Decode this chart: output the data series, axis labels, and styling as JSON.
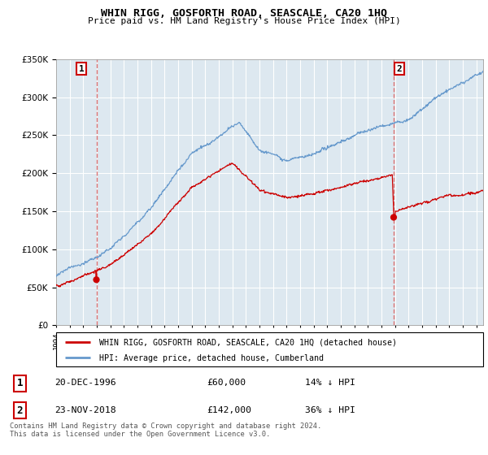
{
  "title": "WHIN RIGG, GOSFORTH ROAD, SEASCALE, CA20 1HQ",
  "subtitle": "Price paid vs. HM Land Registry's House Price Index (HPI)",
  "legend_line1": "WHIN RIGG, GOSFORTH ROAD, SEASCALE, CA20 1HQ (detached house)",
  "legend_line2": "HPI: Average price, detached house, Cumberland",
  "annotation1_date": "20-DEC-1996",
  "annotation1_price": "£60,000",
  "annotation1_hpi": "14% ↓ HPI",
  "annotation2_date": "23-NOV-2018",
  "annotation2_price": "£142,000",
  "annotation2_hpi": "36% ↓ HPI",
  "footer": "Contains HM Land Registry data © Crown copyright and database right 2024.\nThis data is licensed under the Open Government Licence v3.0.",
  "sale1_year": 1996.97,
  "sale1_price": 60000,
  "sale2_year": 2018.9,
  "sale2_price": 142000,
  "ylim": [
    0,
    350000
  ],
  "xlim": [
    1994.0,
    2025.5
  ],
  "red_line_color": "#cc0000",
  "blue_line_color": "#6699cc",
  "plot_bg_color": "#dde8f0",
  "background_color": "#ffffff",
  "grid_color": "#ffffff",
  "dashed_line_color": "#dd6666"
}
